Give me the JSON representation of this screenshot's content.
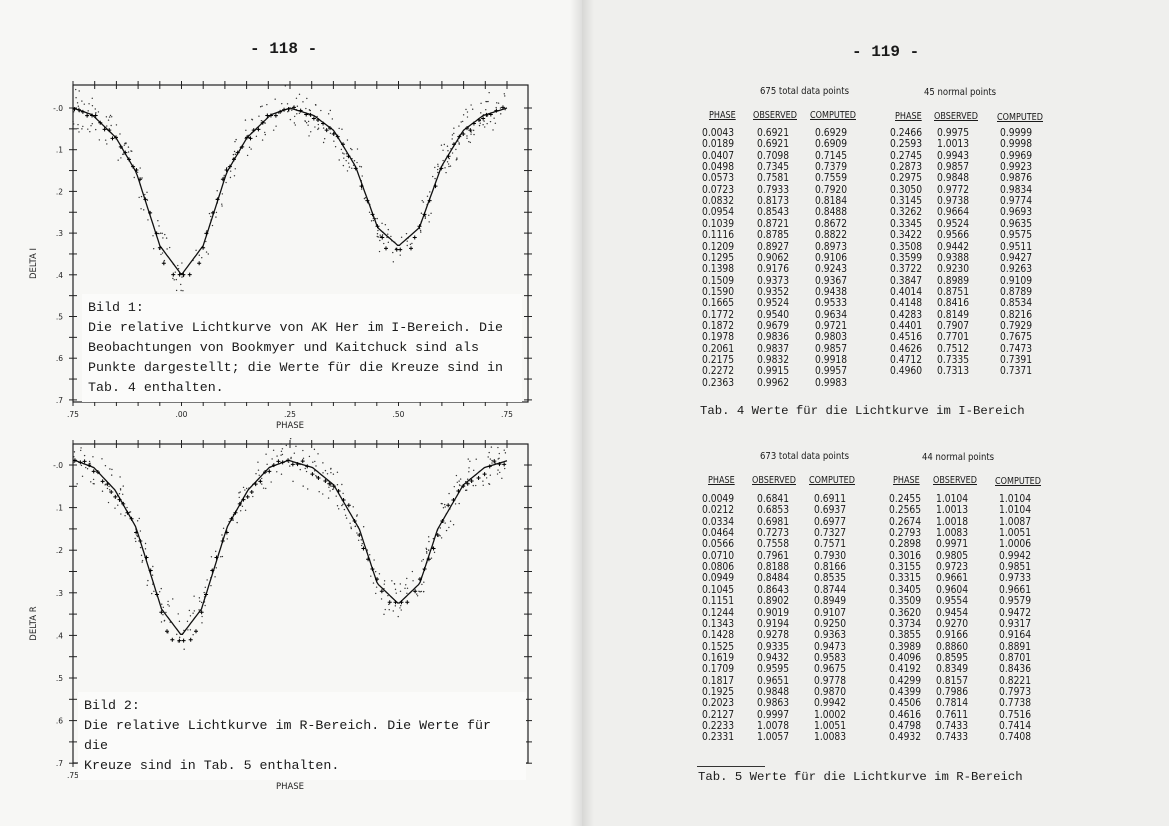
{
  "left_page": {
    "page_number": "- 118 -",
    "figures": [
      {
        "caption_lines": [
          "Bild 1:",
          "Die relative Lichtkurve von AK Her im I-Bereich. Die",
          "Beobachtungen von Bookmyer und Kaitchuck sind als",
          "Punkte dargestellt; die Werte für die Kreuze sind in",
          "Tab. 4 enthalten."
        ]
      },
      {
        "caption_lines": [
          "Bild 2:",
          "Die relative Lichtkurve im R-Bereich. Die Werte für die",
          "Kreuze sind in Tab. 5 enthalten."
        ]
      }
    ]
  },
  "right_page": {
    "page_number": "- 119 -",
    "tables": [
      {
        "left_title": "675 total data points",
        "right_title": "45 normal points",
        "headers": [
          "PHASE",
          "OBSERVED",
          "COMPUTED"
        ],
        "left_rows": [
          [
            "0.0043",
            "0.6921",
            "0.6929"
          ],
          [
            "0.0189",
            "0.6921",
            "0.6909"
          ],
          [
            "0.0407",
            "0.7098",
            "0.7145"
          ],
          [
            "0.0498",
            "0.7345",
            "0.7379"
          ],
          [
            "0.0573",
            "0.7581",
            "0.7559"
          ],
          [
            "0.0723",
            "0.7933",
            "0.7920"
          ],
          [
            "0.0832",
            "0.8173",
            "0.8184"
          ],
          [
            "0.0954",
            "0.8543",
            "0.8488"
          ],
          [
            "0.1039",
            "0.8721",
            "0.8672"
          ],
          [
            "0.1116",
            "0.8785",
            "0.8822"
          ],
          [
            "0.1209",
            "0.8927",
            "0.8973"
          ],
          [
            "0.1295",
            "0.9062",
            "0.9106"
          ],
          [
            "0.1398",
            "0.9176",
            "0.9243"
          ],
          [
            "0.1509",
            "0.9373",
            "0.9367"
          ],
          [
            "0.1590",
            "0.9352",
            "0.9438"
          ],
          [
            "0.1665",
            "0.9524",
            "0.9533"
          ],
          [
            "0.1772",
            "0.9540",
            "0.9634"
          ],
          [
            "0.1872",
            "0.9679",
            "0.9721"
          ],
          [
            "0.1978",
            "0.9836",
            "0.9803"
          ],
          [
            "0.2061",
            "0.9837",
            "0.9857"
          ],
          [
            "0.2175",
            "0.9832",
            "0.9918"
          ],
          [
            "0.2272",
            "0.9915",
            "0.9957"
          ],
          [
            "0.2363",
            "0.9962",
            "0.9983"
          ]
        ],
        "right_rows": [
          [
            "0.2466",
            "0.9975",
            "0.9999"
          ],
          [
            "0.2593",
            "1.0013",
            "0.9998"
          ],
          [
            "0.2745",
            "0.9943",
            "0.9969"
          ],
          [
            "0.2873",
            "0.9857",
            "0.9923"
          ],
          [
            "0.2975",
            "0.9848",
            "0.9876"
          ],
          [
            "0.3050",
            "0.9772",
            "0.9834"
          ],
          [
            "0.3145",
            "0.9738",
            "0.9774"
          ],
          [
            "0.3262",
            "0.9664",
            "0.9693"
          ],
          [
            "0.3345",
            "0.9524",
            "0.9635"
          ],
          [
            "0.3422",
            "0.9566",
            "0.9575"
          ],
          [
            "0.3508",
            "0.9442",
            "0.9511"
          ],
          [
            "0.3599",
            "0.9388",
            "0.9427"
          ],
          [
            "0.3722",
            "0.9230",
            "0.9263"
          ],
          [
            "0.3847",
            "0.8989",
            "0.9109"
          ],
          [
            "0.4014",
            "0.8751",
            "0.8789"
          ],
          [
            "0.4148",
            "0.8416",
            "0.8534"
          ],
          [
            "0.4283",
            "0.8149",
            "0.8216"
          ],
          [
            "0.4401",
            "0.7907",
            "0.7929"
          ],
          [
            "0.4516",
            "0.7701",
            "0.7675"
          ],
          [
            "0.4626",
            "0.7512",
            "0.7473"
          ],
          [
            "0.4712",
            "0.7335",
            "0.7391"
          ],
          [
            "0.4960",
            "0.7313",
            "0.7371"
          ]
        ],
        "caption": "Tab. 4  Werte für die Lichtkurve im I-Bereich"
      },
      {
        "left_title": "673 total data points",
        "right_title": "44 normal points",
        "headers": [
          "PHASE",
          "OBSERVED",
          "COMPUTED"
        ],
        "left_rows": [
          [
            "0.0049",
            "0.6841",
            "0.6911"
          ],
          [
            "0.0212",
            "0.6853",
            "0.6937"
          ],
          [
            "0.0334",
            "0.6981",
            "0.6977"
          ],
          [
            "0.0464",
            "0.7273",
            "0.7327"
          ],
          [
            "0.0566",
            "0.7558",
            "0.7571"
          ],
          [
            "0.0710",
            "0.7961",
            "0.7930"
          ],
          [
            "0.0806",
            "0.8188",
            "0.8166"
          ],
          [
            "0.0949",
            "0.8484",
            "0.8535"
          ],
          [
            "0.1045",
            "0.8643",
            "0.8744"
          ],
          [
            "0.1151",
            "0.8902",
            "0.8949"
          ],
          [
            "0.1244",
            "0.9019",
            "0.9107"
          ],
          [
            "0.1343",
            "0.9194",
            "0.9250"
          ],
          [
            "0.1428",
            "0.9278",
            "0.9363"
          ],
          [
            "0.1525",
            "0.9335",
            "0.9473"
          ],
          [
            "0.1619",
            "0.9432",
            "0.9583"
          ],
          [
            "0.1709",
            "0.9595",
            "0.9675"
          ],
          [
            "0.1817",
            "0.9651",
            "0.9778"
          ],
          [
            "0.1925",
            "0.9848",
            "0.9870"
          ],
          [
            "0.2023",
            "0.9863",
            "0.9942"
          ],
          [
            "0.2127",
            "0.9997",
            "1.0002"
          ],
          [
            "0.2233",
            "1.0078",
            "1.0051"
          ],
          [
            "0.2331",
            "1.0057",
            "1.0083"
          ]
        ],
        "right_rows": [
          [
            "0.2455",
            "1.0104",
            "1.0104"
          ],
          [
            "0.2565",
            "1.0013",
            "1.0104"
          ],
          [
            "0.2674",
            "1.0018",
            "1.0087"
          ],
          [
            "0.2793",
            "1.0083",
            "1.0051"
          ],
          [
            "0.2898",
            "0.9971",
            "1.0006"
          ],
          [
            "0.3016",
            "0.9805",
            "0.9942"
          ],
          [
            "0.3155",
            "0.9723",
            "0.9851"
          ],
          [
            "0.3315",
            "0.9661",
            "0.9733"
          ],
          [
            "0.3405",
            "0.9604",
            "0.9661"
          ],
          [
            "0.3509",
            "0.9554",
            "0.9579"
          ],
          [
            "0.3620",
            "0.9454",
            "0.9472"
          ],
          [
            "0.3734",
            "0.9270",
            "0.9317"
          ],
          [
            "0.3855",
            "0.9166",
            "0.9164"
          ],
          [
            "0.3989",
            "0.8860",
            "0.8891"
          ],
          [
            "0.4096",
            "0.8595",
            "0.8701"
          ],
          [
            "0.4192",
            "0.8349",
            "0.8436"
          ],
          [
            "0.4299",
            "0.8157",
            "0.8221"
          ],
          [
            "0.4399",
            "0.7986",
            "0.7973"
          ],
          [
            "0.4506",
            "0.7814",
            "0.7738"
          ],
          [
            "0.4616",
            "0.7611",
            "0.7516"
          ],
          [
            "0.4798",
            "0.7433",
            "0.7414"
          ],
          [
            "0.4932",
            "0.7433",
            "0.7408"
          ]
        ],
        "caption": "Tab. 5  Werte für die Lichtkurve im R-Bereich"
      }
    ]
  },
  "chart_data": [
    {
      "type": "line",
      "xlabel": "PHASE",
      "ylabel": "DELTA I",
      "x_tick_labels": [
        ".75",
        ".00",
        ".25",
        ".50",
        ".75"
      ],
      "y_tick_labels": [
        "-.0",
        ".1",
        ".2",
        ".3",
        ".4",
        ".5",
        ".6",
        ".7"
      ],
      "ylim": [
        0,
        0.7
      ],
      "y_inverted": true,
      "grid": false,
      "series": [
        {
          "style": "curve with crosses",
          "x": [
            0.0,
            0.05,
            0.104,
            0.151,
            0.206,
            0.25,
            0.305,
            0.351,
            0.401,
            0.452,
            0.5
          ],
          "y": [
            0.4,
            0.33,
            0.155,
            0.071,
            0.016,
            0.0,
            0.018,
            0.054,
            0.14,
            0.287,
            0.331
          ]
        },
        {
          "style": "dots",
          "description_source": "Bookmyer und Kaitchuck"
        }
      ]
    },
    {
      "type": "line",
      "xlabel": "PHASE",
      "ylabel": "DELTA R",
      "x_tick_labels": [
        ".75",
        ".00",
        ".25",
        ".50",
        ".75"
      ],
      "y_tick_labels": [
        "-.0",
        ".1",
        ".2",
        ".3",
        ".4",
        ".5",
        ".6",
        ".7"
      ],
      "ylim": [
        0,
        0.7
      ],
      "y_inverted": true,
      "grid": false,
      "series": [
        {
          "style": "curve with crosses",
          "x": [
            0.0,
            0.046,
            0.105,
            0.153,
            0.202,
            0.246,
            0.302,
            0.351,
            0.41,
            0.451,
            0.5
          ],
          "y": [
            0.4,
            0.338,
            0.146,
            0.059,
            0.006,
            -0.011,
            0.006,
            0.047,
            0.151,
            0.278,
            0.326
          ]
        },
        {
          "style": "dots"
        }
      ]
    }
  ]
}
